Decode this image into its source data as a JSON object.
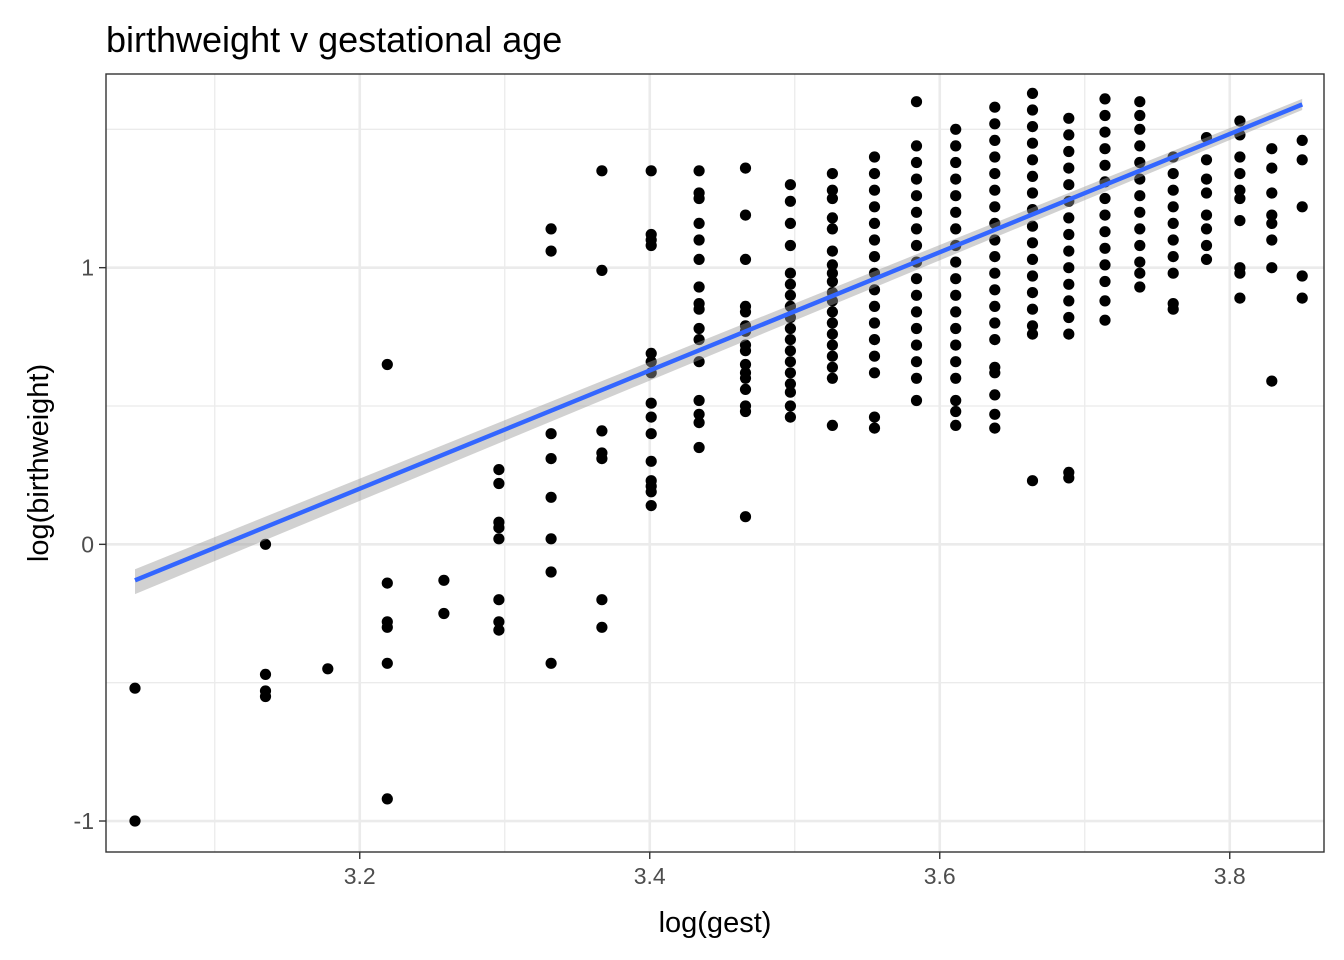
{
  "chart_data": {
    "type": "scatter",
    "title": "birthweight v gestational age",
    "xlabel": "log(gest)",
    "ylabel": "log(birthweight)",
    "xlim": [
      3.025,
      3.865
    ],
    "ylim": [
      -1.112,
      1.7
    ],
    "x_ticks": [
      {
        "value": 3.2,
        "label": "3.2"
      },
      {
        "value": 3.4,
        "label": "3.4"
      },
      {
        "value": 3.6,
        "label": "3.6"
      },
      {
        "value": 3.8,
        "label": "3.8"
      }
    ],
    "x_minor_ticks": [
      3.1,
      3.3,
      3.5,
      3.7
    ],
    "y_ticks": [
      {
        "value": -1,
        "label": "-1"
      },
      {
        "value": 0,
        "label": "0"
      },
      {
        "value": 1,
        "label": "1"
      }
    ],
    "y_minor_ticks": [
      -0.5,
      0.5,
      1.5
    ],
    "grid": true,
    "point_color": "#000000",
    "fit": {
      "method": "linear",
      "color": "#3366ff",
      "band_color": "#999999",
      "x": [
        3.045,
        3.85
      ],
      "y": [
        -0.13,
        1.59
      ],
      "se_lower": [
        -0.18,
        1.57
      ],
      "se_upper": [
        -0.09,
        1.61
      ]
    },
    "series": [
      {
        "points": [
          [
            3.045,
            -0.52
          ],
          [
            3.045,
            -1.0
          ],
          [
            3.135,
            0.0
          ],
          [
            3.135,
            -0.47
          ],
          [
            3.135,
            -0.53
          ],
          [
            3.135,
            -0.55
          ],
          [
            3.178,
            -0.45
          ],
          [
            3.219,
            0.65
          ],
          [
            3.219,
            -0.14
          ],
          [
            3.219,
            -0.28
          ],
          [
            3.219,
            -0.3
          ],
          [
            3.219,
            -0.43
          ],
          [
            3.219,
            -0.92
          ],
          [
            3.258,
            -0.13
          ],
          [
            3.258,
            -0.25
          ],
          [
            3.296,
            0.27
          ],
          [
            3.296,
            0.22
          ],
          [
            3.296,
            0.08
          ],
          [
            3.296,
            0.06
          ],
          [
            3.296,
            0.02
          ],
          [
            3.296,
            -0.2
          ],
          [
            3.296,
            -0.28
          ],
          [
            3.296,
            -0.31
          ],
          [
            3.332,
            1.14
          ],
          [
            3.332,
            1.06
          ],
          [
            3.332,
            0.4
          ],
          [
            3.332,
            0.31
          ],
          [
            3.332,
            0.17
          ],
          [
            3.332,
            0.02
          ],
          [
            3.332,
            -0.1
          ],
          [
            3.332,
            -0.43
          ],
          [
            3.367,
            1.35
          ],
          [
            3.367,
            0.99
          ],
          [
            3.367,
            0.41
          ],
          [
            3.367,
            0.33
          ],
          [
            3.367,
            0.31
          ],
          [
            3.367,
            -0.2
          ],
          [
            3.367,
            -0.3
          ],
          [
            3.401,
            1.35
          ],
          [
            3.401,
            1.12
          ],
          [
            3.401,
            1.08
          ],
          [
            3.401,
            1.1
          ],
          [
            3.401,
            0.69
          ],
          [
            3.401,
            0.66
          ],
          [
            3.401,
            0.62
          ],
          [
            3.401,
            0.51
          ],
          [
            3.401,
            0.46
          ],
          [
            3.401,
            0.4
          ],
          [
            3.401,
            0.3
          ],
          [
            3.401,
            0.23
          ],
          [
            3.401,
            0.21
          ],
          [
            3.401,
            0.19
          ],
          [
            3.401,
            0.14
          ],
          [
            3.434,
            1.35
          ],
          [
            3.434,
            1.27
          ],
          [
            3.434,
            1.25
          ],
          [
            3.434,
            1.16
          ],
          [
            3.434,
            1.1
          ],
          [
            3.434,
            1.03
          ],
          [
            3.434,
            0.93
          ],
          [
            3.434,
            0.87
          ],
          [
            3.434,
            0.85
          ],
          [
            3.434,
            0.78
          ],
          [
            3.434,
            0.74
          ],
          [
            3.434,
            0.66
          ],
          [
            3.434,
            0.52
          ],
          [
            3.434,
            0.47
          ],
          [
            3.434,
            0.44
          ],
          [
            3.434,
            0.35
          ],
          [
            3.466,
            1.36
          ],
          [
            3.466,
            1.19
          ],
          [
            3.466,
            1.03
          ],
          [
            3.466,
            0.86
          ],
          [
            3.466,
            0.84
          ],
          [
            3.466,
            0.79
          ],
          [
            3.466,
            0.77
          ],
          [
            3.466,
            0.72
          ],
          [
            3.466,
            0.7
          ],
          [
            3.466,
            0.65
          ],
          [
            3.466,
            0.62
          ],
          [
            3.466,
            0.6
          ],
          [
            3.466,
            0.56
          ],
          [
            3.466,
            0.5
          ],
          [
            3.466,
            0.48
          ],
          [
            3.466,
            0.1
          ],
          [
            3.497,
            1.3
          ],
          [
            3.497,
            1.24
          ],
          [
            3.497,
            1.16
          ],
          [
            3.497,
            1.08
          ],
          [
            3.497,
            0.98
          ],
          [
            3.497,
            0.94
          ],
          [
            3.497,
            0.9
          ],
          [
            3.497,
            0.86
          ],
          [
            3.497,
            0.82
          ],
          [
            3.497,
            0.78
          ],
          [
            3.497,
            0.74
          ],
          [
            3.497,
            0.7
          ],
          [
            3.497,
            0.66
          ],
          [
            3.497,
            0.62
          ],
          [
            3.497,
            0.58
          ],
          [
            3.497,
            0.55
          ],
          [
            3.497,
            0.5
          ],
          [
            3.497,
            0.46
          ],
          [
            3.526,
            1.34
          ],
          [
            3.526,
            1.28
          ],
          [
            3.526,
            1.25
          ],
          [
            3.526,
            1.18
          ],
          [
            3.526,
            1.14
          ],
          [
            3.526,
            1.06
          ],
          [
            3.526,
            1.01
          ],
          [
            3.526,
            0.98
          ],
          [
            3.526,
            0.95
          ],
          [
            3.526,
            0.91
          ],
          [
            3.526,
            0.88
          ],
          [
            3.526,
            0.84
          ],
          [
            3.526,
            0.8
          ],
          [
            3.526,
            0.76
          ],
          [
            3.526,
            0.72
          ],
          [
            3.526,
            0.68
          ],
          [
            3.526,
            0.64
          ],
          [
            3.526,
            0.6
          ],
          [
            3.526,
            0.43
          ],
          [
            3.555,
            1.4
          ],
          [
            3.555,
            1.34
          ],
          [
            3.555,
            1.28
          ],
          [
            3.555,
            1.22
          ],
          [
            3.555,
            1.16
          ],
          [
            3.555,
            1.1
          ],
          [
            3.555,
            1.04
          ],
          [
            3.555,
            0.98
          ],
          [
            3.555,
            0.92
          ],
          [
            3.555,
            0.86
          ],
          [
            3.555,
            0.8
          ],
          [
            3.555,
            0.74
          ],
          [
            3.555,
            0.68
          ],
          [
            3.555,
            0.62
          ],
          [
            3.555,
            0.46
          ],
          [
            3.555,
            0.42
          ],
          [
            3.584,
            1.6
          ],
          [
            3.584,
            1.44
          ],
          [
            3.584,
            1.38
          ],
          [
            3.584,
            1.32
          ],
          [
            3.584,
            1.26
          ],
          [
            3.584,
            1.2
          ],
          [
            3.584,
            1.14
          ],
          [
            3.584,
            1.08
          ],
          [
            3.584,
            1.02
          ],
          [
            3.584,
            0.96
          ],
          [
            3.584,
            0.9
          ],
          [
            3.584,
            0.84
          ],
          [
            3.584,
            0.78
          ],
          [
            3.584,
            0.72
          ],
          [
            3.584,
            0.66
          ],
          [
            3.584,
            0.6
          ],
          [
            3.584,
            0.52
          ],
          [
            3.611,
            1.5
          ],
          [
            3.611,
            1.44
          ],
          [
            3.611,
            1.38
          ],
          [
            3.611,
            1.32
          ],
          [
            3.611,
            1.26
          ],
          [
            3.611,
            1.2
          ],
          [
            3.611,
            1.14
          ],
          [
            3.611,
            1.08
          ],
          [
            3.611,
            1.02
          ],
          [
            3.611,
            0.96
          ],
          [
            3.611,
            0.9
          ],
          [
            3.611,
            0.84
          ],
          [
            3.611,
            0.78
          ],
          [
            3.611,
            0.72
          ],
          [
            3.611,
            0.66
          ],
          [
            3.611,
            0.6
          ],
          [
            3.611,
            0.52
          ],
          [
            3.611,
            0.48
          ],
          [
            3.611,
            0.43
          ],
          [
            3.638,
            1.58
          ],
          [
            3.638,
            1.52
          ],
          [
            3.638,
            1.46
          ],
          [
            3.638,
            1.4
          ],
          [
            3.638,
            1.34
          ],
          [
            3.638,
            1.28
          ],
          [
            3.638,
            1.22
          ],
          [
            3.638,
            1.16
          ],
          [
            3.638,
            1.1
          ],
          [
            3.638,
            1.04
          ],
          [
            3.638,
            0.98
          ],
          [
            3.638,
            0.92
          ],
          [
            3.638,
            0.86
          ],
          [
            3.638,
            0.8
          ],
          [
            3.638,
            0.74
          ],
          [
            3.638,
            0.64
          ],
          [
            3.638,
            0.62
          ],
          [
            3.638,
            0.54
          ],
          [
            3.638,
            0.47
          ],
          [
            3.638,
            0.42
          ],
          [
            3.664,
            1.63
          ],
          [
            3.664,
            1.57
          ],
          [
            3.664,
            1.51
          ],
          [
            3.664,
            1.45
          ],
          [
            3.664,
            1.39
          ],
          [
            3.664,
            1.33
          ],
          [
            3.664,
            1.27
          ],
          [
            3.664,
            1.21
          ],
          [
            3.664,
            1.15
          ],
          [
            3.664,
            1.09
          ],
          [
            3.664,
            1.03
          ],
          [
            3.664,
            0.97
          ],
          [
            3.664,
            0.91
          ],
          [
            3.664,
            0.85
          ],
          [
            3.664,
            0.79
          ],
          [
            3.664,
            0.76
          ],
          [
            3.664,
            0.23
          ],
          [
            3.689,
            1.54
          ],
          [
            3.689,
            1.48
          ],
          [
            3.689,
            1.42
          ],
          [
            3.689,
            1.36
          ],
          [
            3.689,
            1.3
          ],
          [
            3.689,
            1.24
          ],
          [
            3.689,
            1.18
          ],
          [
            3.689,
            1.12
          ],
          [
            3.689,
            1.06
          ],
          [
            3.689,
            1.0
          ],
          [
            3.689,
            0.94
          ],
          [
            3.689,
            0.88
          ],
          [
            3.689,
            0.82
          ],
          [
            3.689,
            0.76
          ],
          [
            3.689,
            0.26
          ],
          [
            3.689,
            0.24
          ],
          [
            3.714,
            1.61
          ],
          [
            3.714,
            1.55
          ],
          [
            3.714,
            1.49
          ],
          [
            3.714,
            1.43
          ],
          [
            3.714,
            1.37
          ],
          [
            3.714,
            1.31
          ],
          [
            3.714,
            1.25
          ],
          [
            3.714,
            1.19
          ],
          [
            3.714,
            1.13
          ],
          [
            3.714,
            1.07
          ],
          [
            3.714,
            1.01
          ],
          [
            3.714,
            0.95
          ],
          [
            3.714,
            0.88
          ],
          [
            3.714,
            0.81
          ],
          [
            3.738,
            1.6
          ],
          [
            3.738,
            1.55
          ],
          [
            3.738,
            1.5
          ],
          [
            3.738,
            1.44
          ],
          [
            3.738,
            1.38
          ],
          [
            3.738,
            1.32
          ],
          [
            3.738,
            1.26
          ],
          [
            3.738,
            1.2
          ],
          [
            3.738,
            1.14
          ],
          [
            3.738,
            1.08
          ],
          [
            3.738,
            1.02
          ],
          [
            3.738,
            0.98
          ],
          [
            3.738,
            0.93
          ],
          [
            3.761,
            1.4
          ],
          [
            3.761,
            1.34
          ],
          [
            3.761,
            1.28
          ],
          [
            3.761,
            1.22
          ],
          [
            3.761,
            1.16
          ],
          [
            3.761,
            1.1
          ],
          [
            3.761,
            1.04
          ],
          [
            3.761,
            0.98
          ],
          [
            3.761,
            0.87
          ],
          [
            3.761,
            0.85
          ],
          [
            3.784,
            1.47
          ],
          [
            3.784,
            1.39
          ],
          [
            3.784,
            1.32
          ],
          [
            3.784,
            1.27
          ],
          [
            3.784,
            1.19
          ],
          [
            3.784,
            1.14
          ],
          [
            3.784,
            1.08
          ],
          [
            3.784,
            1.03
          ],
          [
            3.807,
            1.53
          ],
          [
            3.807,
            1.48
          ],
          [
            3.807,
            1.4
          ],
          [
            3.807,
            1.34
          ],
          [
            3.807,
            1.28
          ],
          [
            3.807,
            1.25
          ],
          [
            3.807,
            1.17
          ],
          [
            3.807,
            1.0
          ],
          [
            3.807,
            0.98
          ],
          [
            3.807,
            0.89
          ],
          [
            3.829,
            1.43
          ],
          [
            3.829,
            1.36
          ],
          [
            3.829,
            1.27
          ],
          [
            3.829,
            1.19
          ],
          [
            3.829,
            1.16
          ],
          [
            3.829,
            1.1
          ],
          [
            3.829,
            1.0
          ],
          [
            3.829,
            0.59
          ],
          [
            3.85,
            1.46
          ],
          [
            3.85,
            1.39
          ],
          [
            3.85,
            1.22
          ],
          [
            3.85,
            0.97
          ],
          [
            3.85,
            0.89
          ]
        ]
      }
    ]
  }
}
